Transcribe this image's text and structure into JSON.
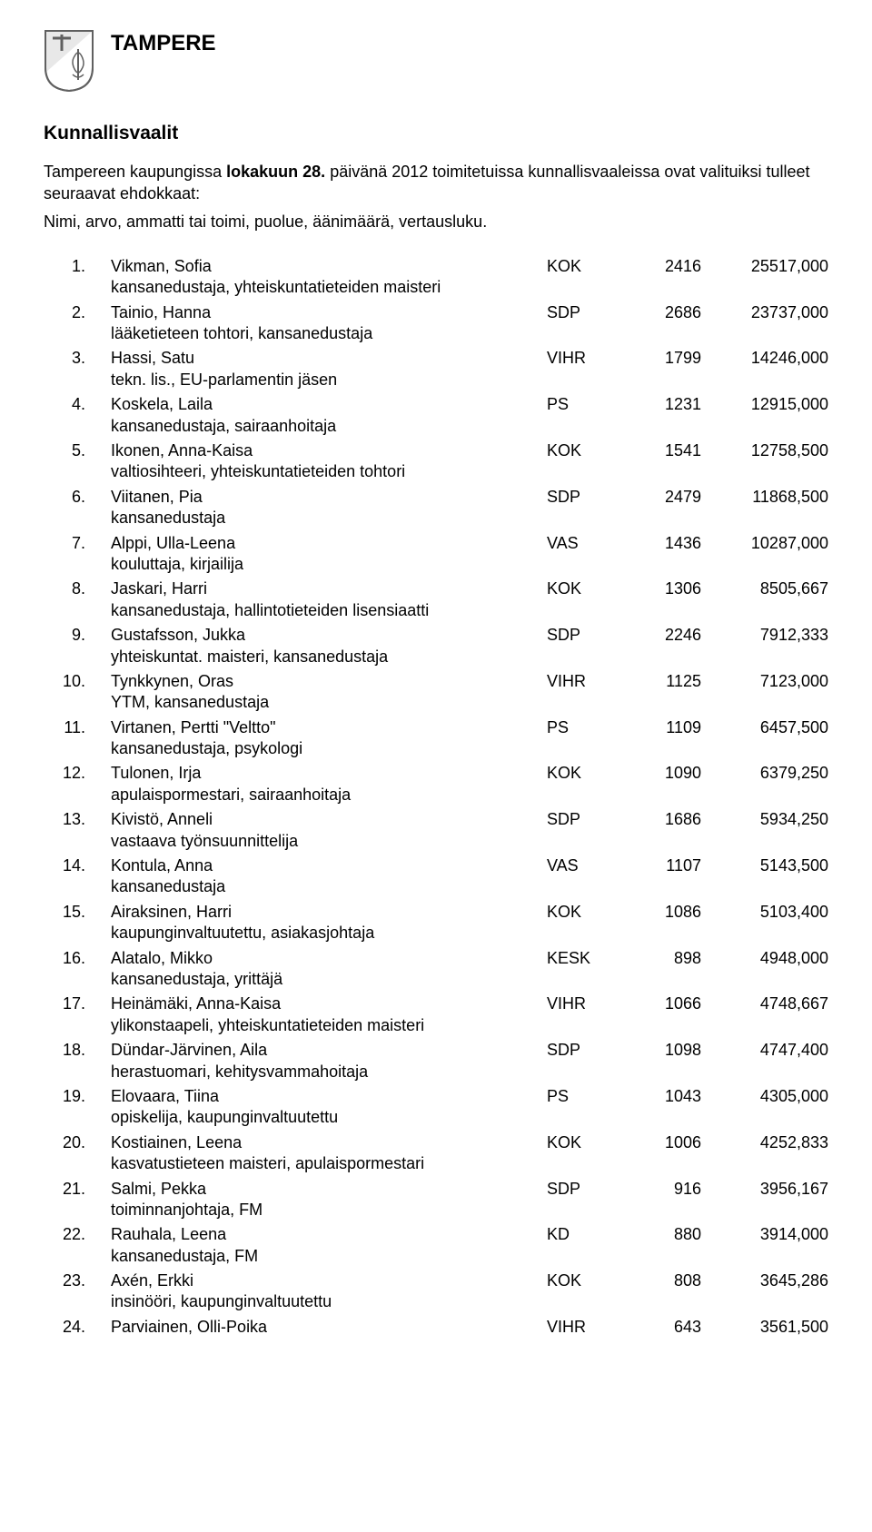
{
  "header": {
    "city": "TAMPERE",
    "title": "Kunnallisvaalit",
    "intro_prefix": "Tampereen kaupungissa ",
    "intro_bold": "lokakuun 28.",
    "intro_suffix": " päivänä 2012 toimitetuissa kunnallisvaaleissa ovat valituiksi tulleet seuraavat ehdokkaat:",
    "intro_line2": "Nimi, arvo, ammatti tai toimi, puolue, äänimäärä, vertausluku."
  },
  "coat_colors": {
    "stroke": "#606060",
    "fill": "#ffffff",
    "accent": "#b0b0b0"
  },
  "rows": [
    {
      "n": "1.",
      "name": "Vikman, Sofia",
      "party": "KOK",
      "votes": "2416",
      "comp": "25517,000",
      "desc": "kansanedustaja, yhteiskuntatieteiden maisteri"
    },
    {
      "n": "2.",
      "name": "Tainio, Hanna",
      "party": "SDP",
      "votes": "2686",
      "comp": "23737,000",
      "desc": "lääketieteen tohtori, kansanedustaja"
    },
    {
      "n": "3.",
      "name": "Hassi, Satu",
      "party": "VIHR",
      "votes": "1799",
      "comp": "14246,000",
      "desc": "tekn. lis., EU-parlamentin jäsen"
    },
    {
      "n": "4.",
      "name": "Koskela, Laila",
      "party": "PS",
      "votes": "1231",
      "comp": "12915,000",
      "desc": "kansanedustaja, sairaanhoitaja"
    },
    {
      "n": "5.",
      "name": "Ikonen, Anna-Kaisa",
      "party": "KOK",
      "votes": "1541",
      "comp": "12758,500",
      "desc": "valtiosihteeri, yhteiskuntatieteiden tohtori"
    },
    {
      "n": "6.",
      "name": "Viitanen, Pia",
      "party": "SDP",
      "votes": "2479",
      "comp": "11868,500",
      "desc": "kansanedustaja"
    },
    {
      "n": "7.",
      "name": "Alppi, Ulla-Leena",
      "party": "VAS",
      "votes": "1436",
      "comp": "10287,000",
      "desc": "kouluttaja, kirjailija"
    },
    {
      "n": "8.",
      "name": "Jaskari, Harri",
      "party": "KOK",
      "votes": "1306",
      "comp": "8505,667",
      "desc": "kansanedustaja, hallintotieteiden lisensiaatti"
    },
    {
      "n": "9.",
      "name": "Gustafsson, Jukka",
      "party": "SDP",
      "votes": "2246",
      "comp": "7912,333",
      "desc": "yhteiskuntat. maisteri, kansanedustaja"
    },
    {
      "n": "10.",
      "name": "Tynkkynen, Oras",
      "party": "VIHR",
      "votes": "1125",
      "comp": "7123,000",
      "desc": "YTM, kansanedustaja"
    },
    {
      "n": "11.",
      "name": "Virtanen, Pertti \"Veltto\"",
      "party": "PS",
      "votes": "1109",
      "comp": "6457,500",
      "desc": "kansanedustaja, psykologi"
    },
    {
      "n": "12.",
      "name": "Tulonen, Irja",
      "party": "KOK",
      "votes": "1090",
      "comp": "6379,250",
      "desc": "apulaispormestari, sairaanhoitaja"
    },
    {
      "n": "13.",
      "name": "Kivistö, Anneli",
      "party": "SDP",
      "votes": "1686",
      "comp": "5934,250",
      "desc": "vastaava työnsuunnittelija"
    },
    {
      "n": "14.",
      "name": "Kontula, Anna",
      "party": "VAS",
      "votes": "1107",
      "comp": "5143,500",
      "desc": "kansanedustaja"
    },
    {
      "n": "15.",
      "name": "Airaksinen, Harri",
      "party": "KOK",
      "votes": "1086",
      "comp": "5103,400",
      "desc": "kaupunginvaltuutettu, asiakasjohtaja"
    },
    {
      "n": "16.",
      "name": "Alatalo, Mikko",
      "party": "KESK",
      "votes": "898",
      "comp": "4948,000",
      "desc": "kansanedustaja, yrittäjä"
    },
    {
      "n": "17.",
      "name": "Heinämäki, Anna-Kaisa",
      "party": "VIHR",
      "votes": "1066",
      "comp": "4748,667",
      "desc": "ylikonstaapeli, yhteiskuntatieteiden maisteri"
    },
    {
      "n": "18.",
      "name": "Dündar-Järvinen, Aila",
      "party": "SDP",
      "votes": "1098",
      "comp": "4747,400",
      "desc": "herastuomari, kehitysvammahoitaja"
    },
    {
      "n": "19.",
      "name": "Elovaara, Tiina",
      "party": "PS",
      "votes": "1043",
      "comp": "4305,000",
      "desc": "opiskelija, kaupunginvaltuutettu"
    },
    {
      "n": "20.",
      "name": "Kostiainen, Leena",
      "party": "KOK",
      "votes": "1006",
      "comp": "4252,833",
      "desc": "kasvatustieteen maisteri, apulaispormestari"
    },
    {
      "n": "21.",
      "name": "Salmi, Pekka",
      "party": "SDP",
      "votes": "916",
      "comp": "3956,167",
      "desc": "toiminnanjohtaja, FM"
    },
    {
      "n": "22.",
      "name": "Rauhala, Leena",
      "party": "KD",
      "votes": "880",
      "comp": "3914,000",
      "desc": "kansanedustaja, FM"
    },
    {
      "n": "23.",
      "name": "Axén, Erkki",
      "party": "KOK",
      "votes": "808",
      "comp": "3645,286",
      "desc": "insinööri, kaupunginvaltuutettu"
    },
    {
      "n": "24.",
      "name": "Parviainen, Olli-Poika",
      "party": "VIHR",
      "votes": "643",
      "comp": "3561,500",
      "desc": ""
    }
  ]
}
